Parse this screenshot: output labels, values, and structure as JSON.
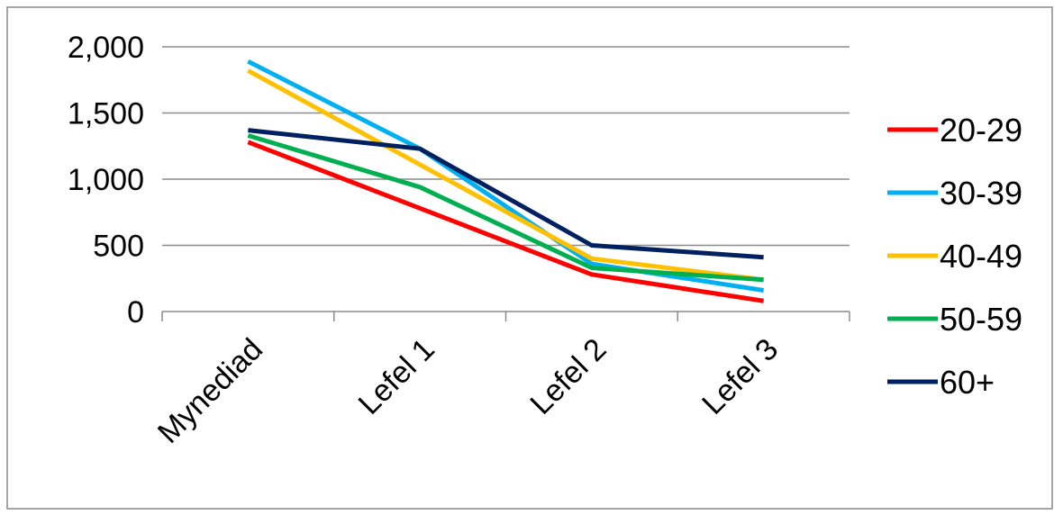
{
  "chart_data": {
    "type": "line",
    "title": "",
    "xlabel": "",
    "ylabel": "",
    "categories": [
      "Mynediad",
      "Lefel 1",
      "Lefel 2",
      "Lefel 3"
    ],
    "ylim": [
      0,
      2000
    ],
    "yticks": [
      0,
      500,
      1000,
      1500,
      2000
    ],
    "ytick_labels": [
      "0",
      "500",
      "1,000",
      "1,500",
      "2,000"
    ],
    "grid": true,
    "legend_position": "right",
    "series": [
      {
        "name": "20-29",
        "color": "#ff0000",
        "values": [
          1280,
          780,
          280,
          80
        ]
      },
      {
        "name": "30-39",
        "color": "#00b0f0",
        "values": [
          1890,
          1230,
          360,
          160
        ]
      },
      {
        "name": "40-49",
        "color": "#ffc000",
        "values": [
          1820,
          1110,
          400,
          240
        ]
      },
      {
        "name": "50-59",
        "color": "#00b050",
        "values": [
          1330,
          940,
          330,
          240
        ]
      },
      {
        "name": "60+",
        "color": "#002060",
        "values": [
          1370,
          1230,
          500,
          410
        ]
      }
    ]
  }
}
